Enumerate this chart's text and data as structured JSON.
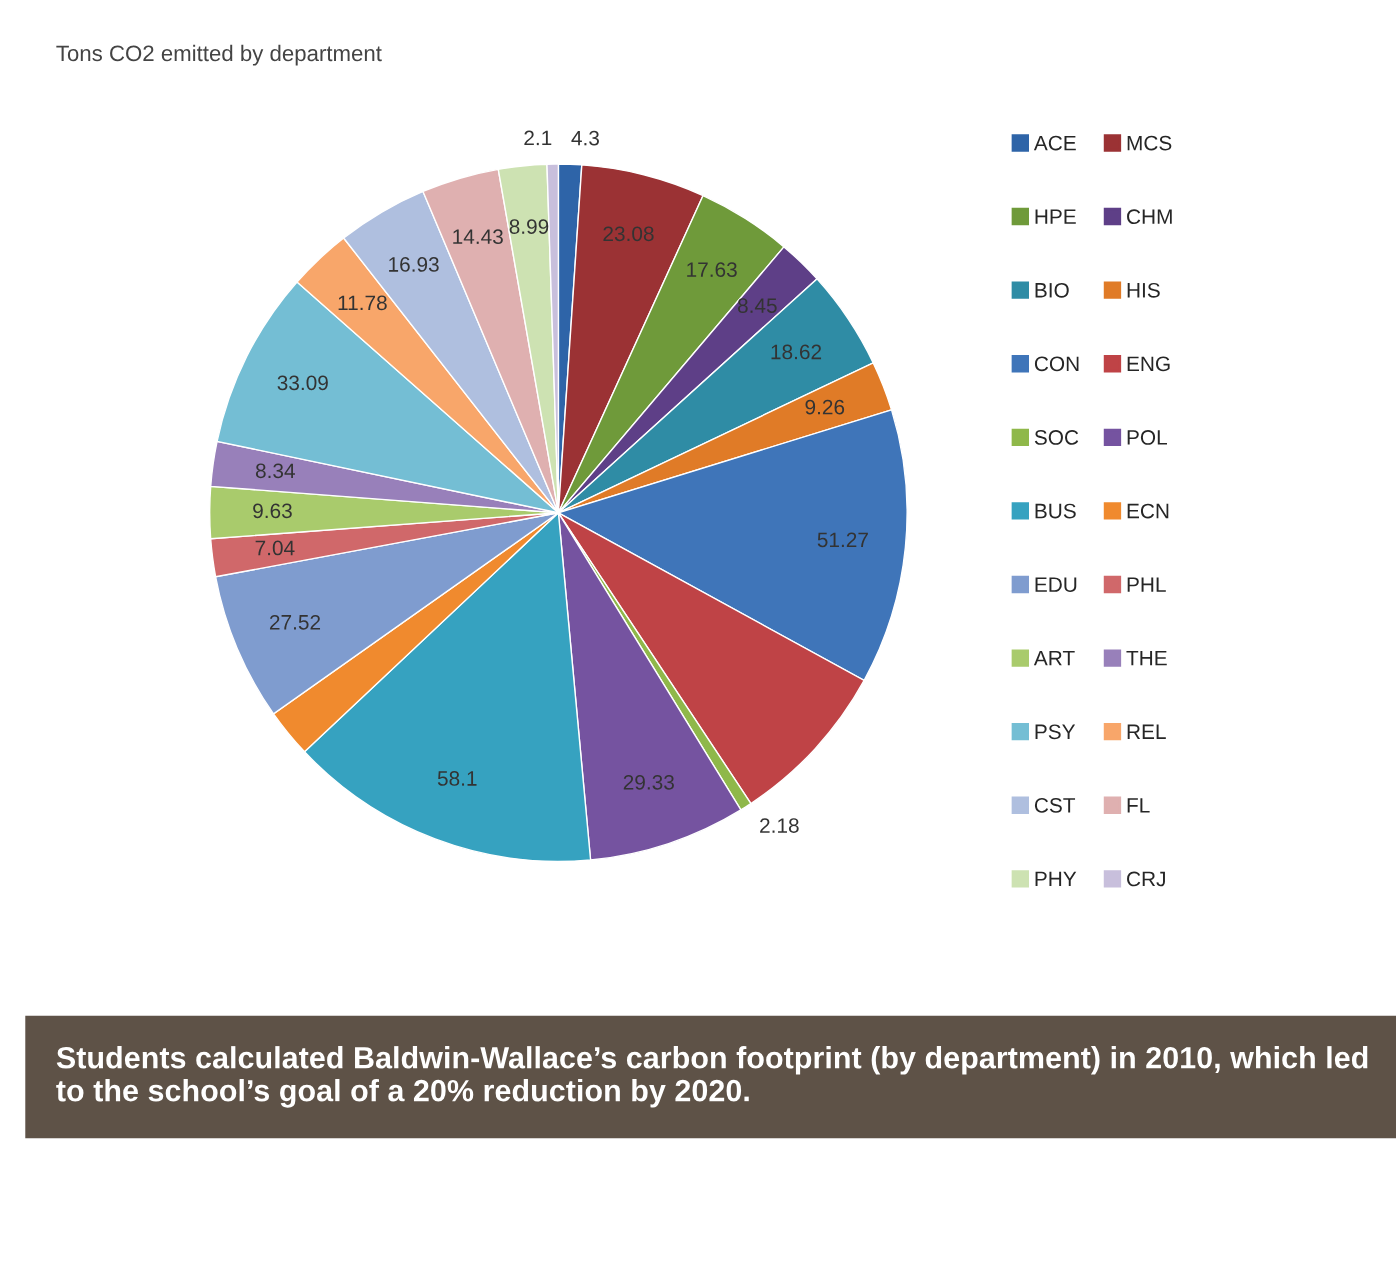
{
  "chart_data": {
    "type": "pie",
    "title": "Tons CO2 emitted by department",
    "categories": [
      "ACE",
      "MCS",
      "HPE",
      "CHM",
      "BIO",
      "HIS",
      "CON",
      "ENG",
      "SOC",
      "POL",
      "BUS",
      "ECN",
      "EDU",
      "PHL",
      "ART",
      "THE",
      "PSY",
      "REL",
      "CST",
      "FL",
      "PHY",
      "CRJ"
    ],
    "values": [
      4.3,
      23.08,
      17.63,
      8.45,
      18.62,
      9.26,
      51.27,
      31,
      2.18,
      29.33,
      58.1,
      9,
      27.52,
      7.04,
      9.63,
      8.34,
      33.09,
      11.78,
      16.93,
      14.43,
      8.99,
      2.1
    ],
    "value_labels": [
      "4.3",
      "23.08",
      "17.63",
      "8.45",
      "18.62",
      "9.26",
      "51.27",
      null,
      "2.18",
      "29.33",
      "58.1",
      null,
      "27.52",
      "7.04",
      "9.63",
      "8.34",
      "33.09",
      "11.78",
      "16.93",
      "14.43",
      "8.99",
      "2.1"
    ],
    "colors": [
      "#2e64a8",
      "#9b3234",
      "#6f9a3a",
      "#5e3f87",
      "#2f8ca5",
      "#e07b27",
      "#3f75b9",
      "#bf4346",
      "#8fb84a",
      "#7553a0",
      "#36a2c0",
      "#f08a2e",
      "#7f9ccf",
      "#d0686a",
      "#a9cb6c",
      "#9880ba",
      "#74bed4",
      "#f8a66a",
      "#afbfdf",
      "#dfb0b0",
      "#cde2b2",
      "#c8bfdc"
    ],
    "legend": "right",
    "annotations": [
      "Students calculated Baldwin-Wallace’s carbon footprint (by department) in 2010, which led to the school’s goal of a 20% reduction by 2020."
    ]
  }
}
